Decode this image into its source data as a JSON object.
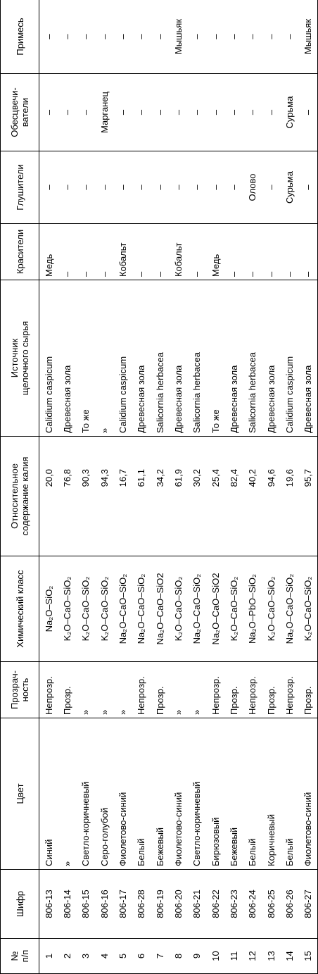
{
  "table": {
    "header": [
      "№\nп/п",
      "Шифр",
      "Цвет",
      "Прозрач-\nность",
      "Химический класс",
      "Относительное\nсодержание калия",
      "Источник\nщелочного сырья",
      "Красители",
      "Глушители",
      "Обесцвечи-\nватели",
      "Примесь"
    ],
    "rows": [
      [
        "1",
        "806-13",
        "Синий",
        "Непрозр.",
        "Na₂O–SiO₂",
        "20,0",
        "Calidium caspicum",
        "Медь",
        "–",
        "–",
        "–"
      ],
      [
        "2",
        "806-14",
        "»",
        "Прозр.",
        "K₂O–CaO–SiO₂",
        "76,8",
        "Древесная зола",
        "–",
        "–",
        "–",
        "–"
      ],
      [
        "3",
        "806-15",
        "Светло-коричневый",
        "»",
        "K₂O–CaO–SiO₂",
        "90,3",
        "То же",
        "–",
        "–",
        "–",
        "–"
      ],
      [
        "4",
        "806-16",
        "Серо-голубой",
        "»",
        "K₂O–CaO–SiO₂",
        "94,3",
        "»",
        "–",
        "–",
        "Марганец",
        "–"
      ],
      [
        "5",
        "806-17",
        "Фиолетово-синий",
        "»",
        "Na₂O–CaO–SiO₂",
        "16,7",
        "Calidium caspicum",
        "Кобальт",
        "–",
        "–",
        "–"
      ],
      [
        "6",
        "806-28",
        "Белый",
        "Непрозр.",
        "Na₂O–CaO–SiO₂",
        "61,1",
        "Древесная зола",
        "–",
        "–",
        "–",
        "–"
      ],
      [
        "7",
        "806-19",
        "Бежевый",
        "Прозр.",
        "Na₂O–CaO–SiO2",
        "34,2",
        "Salicornia herbacea",
        "–",
        "–",
        "–",
        "–"
      ],
      [
        "8",
        "806-20",
        "Фиолетово-синий",
        "»",
        "K₂O–CaO–SiO₂",
        "61,9",
        "Древесная зола",
        "Кобальт",
        "–",
        "–",
        "Мышьяк"
      ],
      [
        "9",
        "806-21",
        "Светло-коричневый",
        "»",
        "Na₂O–CaO–SiO₂",
        "30,2",
        "Salicornia herbacea",
        "–",
        "–",
        "–",
        "–"
      ],
      [
        "10",
        "806-22",
        "Бирюзовый",
        "Непрозр.",
        "Na₂O–CaO–SiO2",
        "25,4",
        "То же",
        "Медь",
        "–",
        "–",
        "–"
      ],
      [
        "11",
        "806-23",
        "Бежевый",
        "Прозр.",
        "K₂O–CaO–SiO₂",
        "82,4",
        "Древесная зола",
        "–",
        "–",
        "–",
        "–"
      ],
      [
        "12",
        "806-24",
        "Белый",
        "Непрозр.",
        "Na₂O–PbO–SiO₂",
        "40,2",
        "Salicornia herbacea",
        "–",
        "Олово",
        "–",
        "–"
      ],
      [
        "13",
        "806-25",
        "Коричневый",
        "Прозр.",
        "K₂O–CaO–SiO₂",
        "94,6",
        "Древесная зола",
        "–",
        "–",
        "–",
        "–"
      ],
      [
        "14",
        "806-26",
        "Белый",
        "Непрозр.",
        "Na₂O–CaO–SiO₂",
        "19,6",
        "Calidium caspicum",
        "–",
        "Сурьма",
        "Сурьма",
        "–"
      ],
      [
        "15",
        "806-27",
        "Фиолетово-синий",
        "Прозр.",
        "K₂O–CaO–SiO₂",
        "95,7",
        "Древесная зола",
        "–",
        "–",
        "–",
        "Мышьяк"
      ]
    ]
  }
}
